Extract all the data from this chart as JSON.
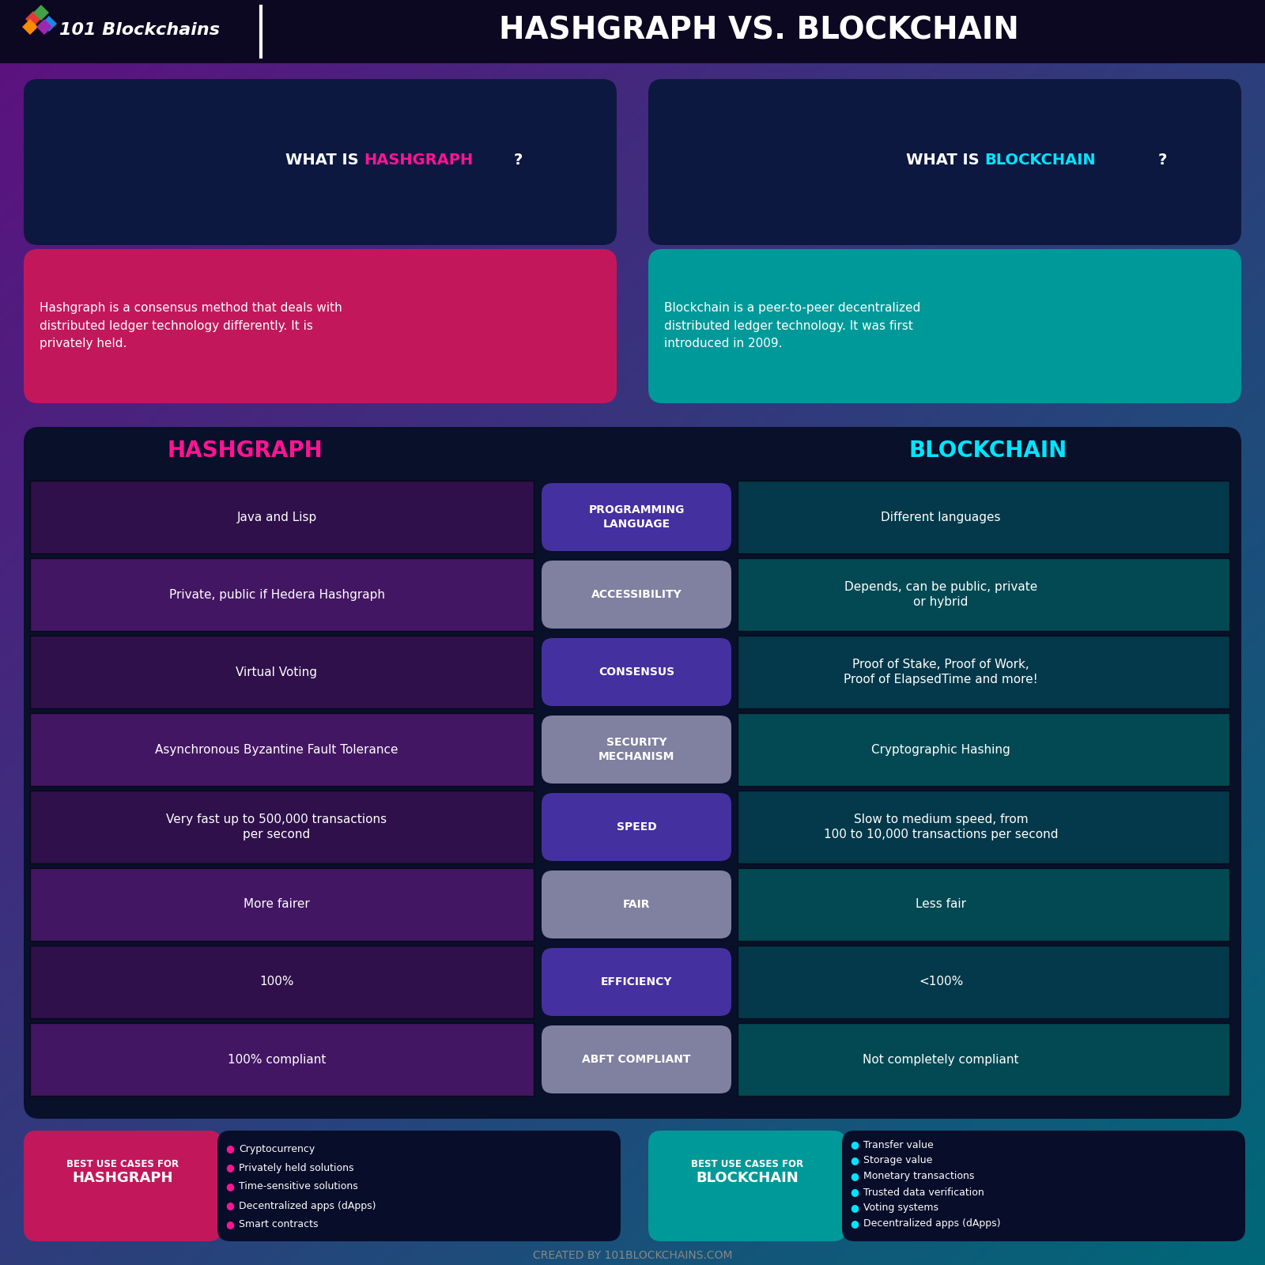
{
  "title_left": "101 Blockchains",
  "title_right": "HASHGRAPH VS. BLOCKCHAIN",
  "hashgraph_color": "#FF1493",
  "blockchain_color": "#00E5FF",
  "white": "#FFFFFF",
  "hashgraph_desc": "Hashgraph is a consensus method that deals with\ndistributed ledger technology differently. It is\nprivately held.",
  "blockchain_desc": "Blockchain is a peer-to-peer decentralized\ndistributed ledger technology. It was first\nintroduced in 2009.",
  "comparison_rows": [
    {
      "category": "PROGRAMMING\nLANGUAGE",
      "hashgraph": "Java and Lisp",
      "blockchain": "Different languages",
      "cat_color": "#3D2B8E",
      "row_parity": 0
    },
    {
      "category": "ACCESSIBILITY",
      "hashgraph": "Private, public if Hedera Hashgraph",
      "blockchain": "Depends, can be public, private\nor hybrid",
      "cat_color": "#7A7A9A",
      "row_parity": 1
    },
    {
      "category": "CONSENSUS",
      "hashgraph": "Virtual Voting",
      "blockchain": "Proof of Stake, Proof of Work,\nProof of ElapsedTime and more!",
      "cat_color": "#3D2B8E",
      "row_parity": 0
    },
    {
      "category": "SECURITY\nMECHANISM",
      "hashgraph": "Asynchronous Byzantine Fault Tolerance",
      "blockchain": "Cryptographic Hashing",
      "cat_color": "#7A7A9A",
      "row_parity": 1
    },
    {
      "category": "SPEED",
      "hashgraph": "Very fast up to 500,000 transactions\nper second",
      "blockchain": "Slow to medium speed, from\n100 to 10,000 transactions per second",
      "cat_color": "#3D2B8E",
      "row_parity": 0
    },
    {
      "category": "FAIR",
      "hashgraph": "More fairer",
      "blockchain": "Less fair",
      "cat_color": "#7A7A9A",
      "row_parity": 1
    },
    {
      "category": "EFFICIENCY",
      "hashgraph": "100%",
      "blockchain": "<100%",
      "cat_color": "#3D2B8E",
      "row_parity": 0
    },
    {
      "category": "ABFT COMPLIANT",
      "hashgraph": "100% compliant",
      "blockchain": "Not completely compliant",
      "cat_color": "#7A7A9A",
      "row_parity": 1
    }
  ],
  "hashgraph_use_cases": [
    "Cryptocurrency",
    "Privately held solutions",
    "Time-sensitive solutions",
    "Decentralized apps (dApps)",
    "Smart contracts"
  ],
  "blockchain_use_cases": [
    "Transfer value",
    "Storage value",
    "Monetary transactions",
    "Trusted data verification",
    "Voting systems",
    "Decentralized apps (dApps)"
  ],
  "footer_text": "CREATED BY 101BLOCKCHAINS.COM"
}
